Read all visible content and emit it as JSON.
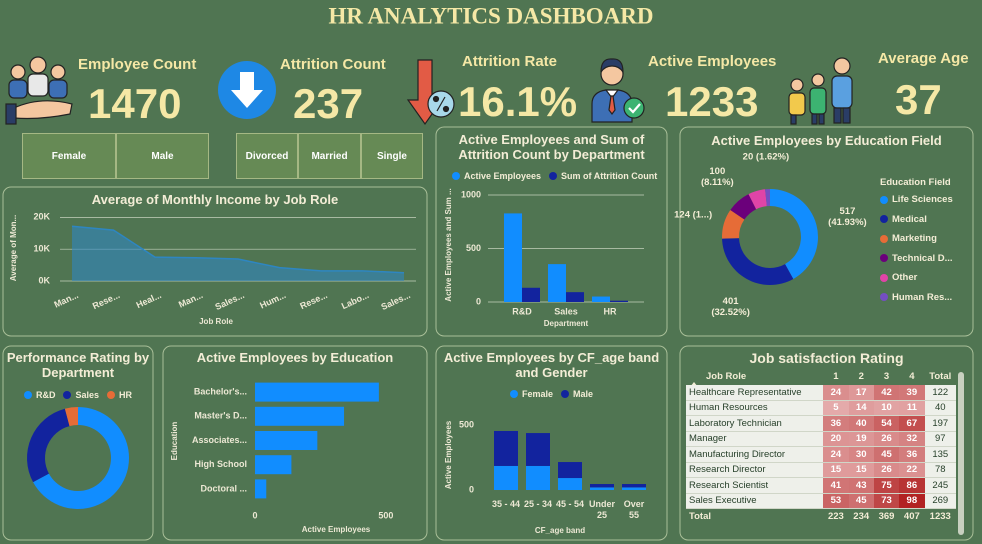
{
  "title": "HR ANALYTICS DASHBOARD",
  "kpis": [
    {
      "label": "Employee Count",
      "value": 1470
    },
    {
      "label": "Attrition Count",
      "value": 237
    },
    {
      "label": "Attrition Rate",
      "value": 16.1,
      "value_label": "16.1%"
    },
    {
      "label": "Active Employees",
      "value": 1233
    },
    {
      "label": "Average Age",
      "value": 37
    }
  ],
  "slicers": [
    [
      "Female",
      "Male"
    ],
    [
      "Divorced",
      "Married",
      "Single"
    ]
  ],
  "chart_data": [
    {
      "type": "area",
      "title": "Average of Monthly Income by Job Role",
      "x_label": "Job Role",
      "y_label": "Average of Mon...",
      "color": "#2e86c1",
      "categories": [
        "Man...",
        "Rese...",
        "Heal...",
        "Man...",
        "Sales...",
        "Hum...",
        "Rese...",
        "Labo...",
        "Sales..."
      ],
      "values": [
        17200,
        16000,
        7500,
        7300,
        6900,
        4200,
        3200,
        3200,
        2600
      ],
      "ylim": [
        0,
        22000
      ],
      "yticks": [
        {
          "value": 0,
          "label": "0K"
        },
        {
          "value": 10000,
          "label": "10K"
        },
        {
          "value": 20000,
          "label": "20K"
        }
      ],
      "grid": true
    },
    {
      "type": "bar",
      "title": "Active Employees and Sum of Attrition Count by Department",
      "x_label": "Department",
      "y_label": "Active Employees and Sum ...",
      "categories": [
        "R&D",
        "Sales",
        "HR"
      ],
      "series": [
        {
          "name": "Active Employees",
          "color": "#118dff",
          "values": [
            828,
            354,
            51
          ]
        },
        {
          "name": "Sum of Attrition Count",
          "color": "#12239e",
          "values": [
            133,
            92,
            12
          ]
        }
      ],
      "ylim": [
        0,
        1070
      ],
      "yticks": [
        0,
        500,
        1000
      ],
      "grid": true
    },
    {
      "type": "donut",
      "title": "Active Employees by Education Field",
      "legend_title": "Education Field",
      "categories": [
        "Life Sciences",
        "Medical",
        "Marketing",
        "Technical D...",
        "Other",
        "Human Res..."
      ],
      "values": [
        517,
        401,
        124,
        100,
        71,
        20
      ],
      "value_labels": [
        "517 (41.93%)",
        "401 (32.52%)",
        "124 (1...)",
        "100 (8.11%)",
        null,
        "20 (1.62%)"
      ],
      "colors": [
        "#118dff",
        "#12239e",
        "#e66c37",
        "#6b007b",
        "#e044a7",
        "#744ec2"
      ]
    },
    {
      "type": "donut",
      "title": "Performance Rating by Department",
      "categories": [
        "R&D",
        "Sales",
        "HR"
      ],
      "values": [
        828,
        354,
        51
      ],
      "colors": [
        "#118dff",
        "#12239e",
        "#e66c37"
      ]
    },
    {
      "type": "hbar",
      "title": "Active Employees by Education",
      "x_label": "Active Employees",
      "y_label": "Education",
      "color": "#118dff",
      "categories": [
        "Bachelor's...",
        "Master's D...",
        "Associates...",
        "High School",
        "Doctoral ..."
      ],
      "values": [
        473,
        340,
        238,
        139,
        43
      ],
      "xlim": [
        0,
        630
      ],
      "xticks": [
        0,
        500
      ]
    },
    {
      "type": "stacked_bar",
      "title": "Active Employees by CF_age band and Gender",
      "x_label": "CF_age band",
      "y_label": "Active Employees",
      "categories": [
        "35 - 44",
        "25 - 34",
        "45 - 54",
        "Under 25",
        "Over 55"
      ],
      "series": [
        {
          "name": "Female",
          "color": "#118dff",
          "values": [
            185,
            185,
            92,
            20,
            20
          ]
        },
        {
          "name": "Male",
          "color": "#12239e",
          "values": [
            269,
            253,
            123,
            26,
            26
          ]
        }
      ],
      "ylim": [
        0,
        550
      ],
      "yticks": [
        0,
        500
      ]
    }
  ],
  "table": {
    "title": "Job satisfaction Rating",
    "columns": [
      "Job Role",
      "1",
      "2",
      "3",
      "4",
      "Total"
    ],
    "rows": [
      [
        "Healthcare Representative",
        24,
        17,
        42,
        39,
        122
      ],
      [
        "Human Resources",
        5,
        14,
        10,
        11,
        40
      ],
      [
        "Laboratory Technician",
        36,
        40,
        54,
        67,
        197
      ],
      [
        "Manager",
        20,
        19,
        26,
        32,
        97
      ],
      [
        "Manufacturing Director",
        24,
        30,
        45,
        36,
        135
      ],
      [
        "Research Director",
        15,
        15,
        26,
        22,
        78
      ],
      [
        "Research Scientist",
        41,
        43,
        75,
        86,
        245
      ],
      [
        "Sales Executive",
        53,
        45,
        73,
        98,
        269
      ]
    ],
    "total": [
      "Total",
      223,
      234,
      369,
      407,
      1233
    ]
  }
}
